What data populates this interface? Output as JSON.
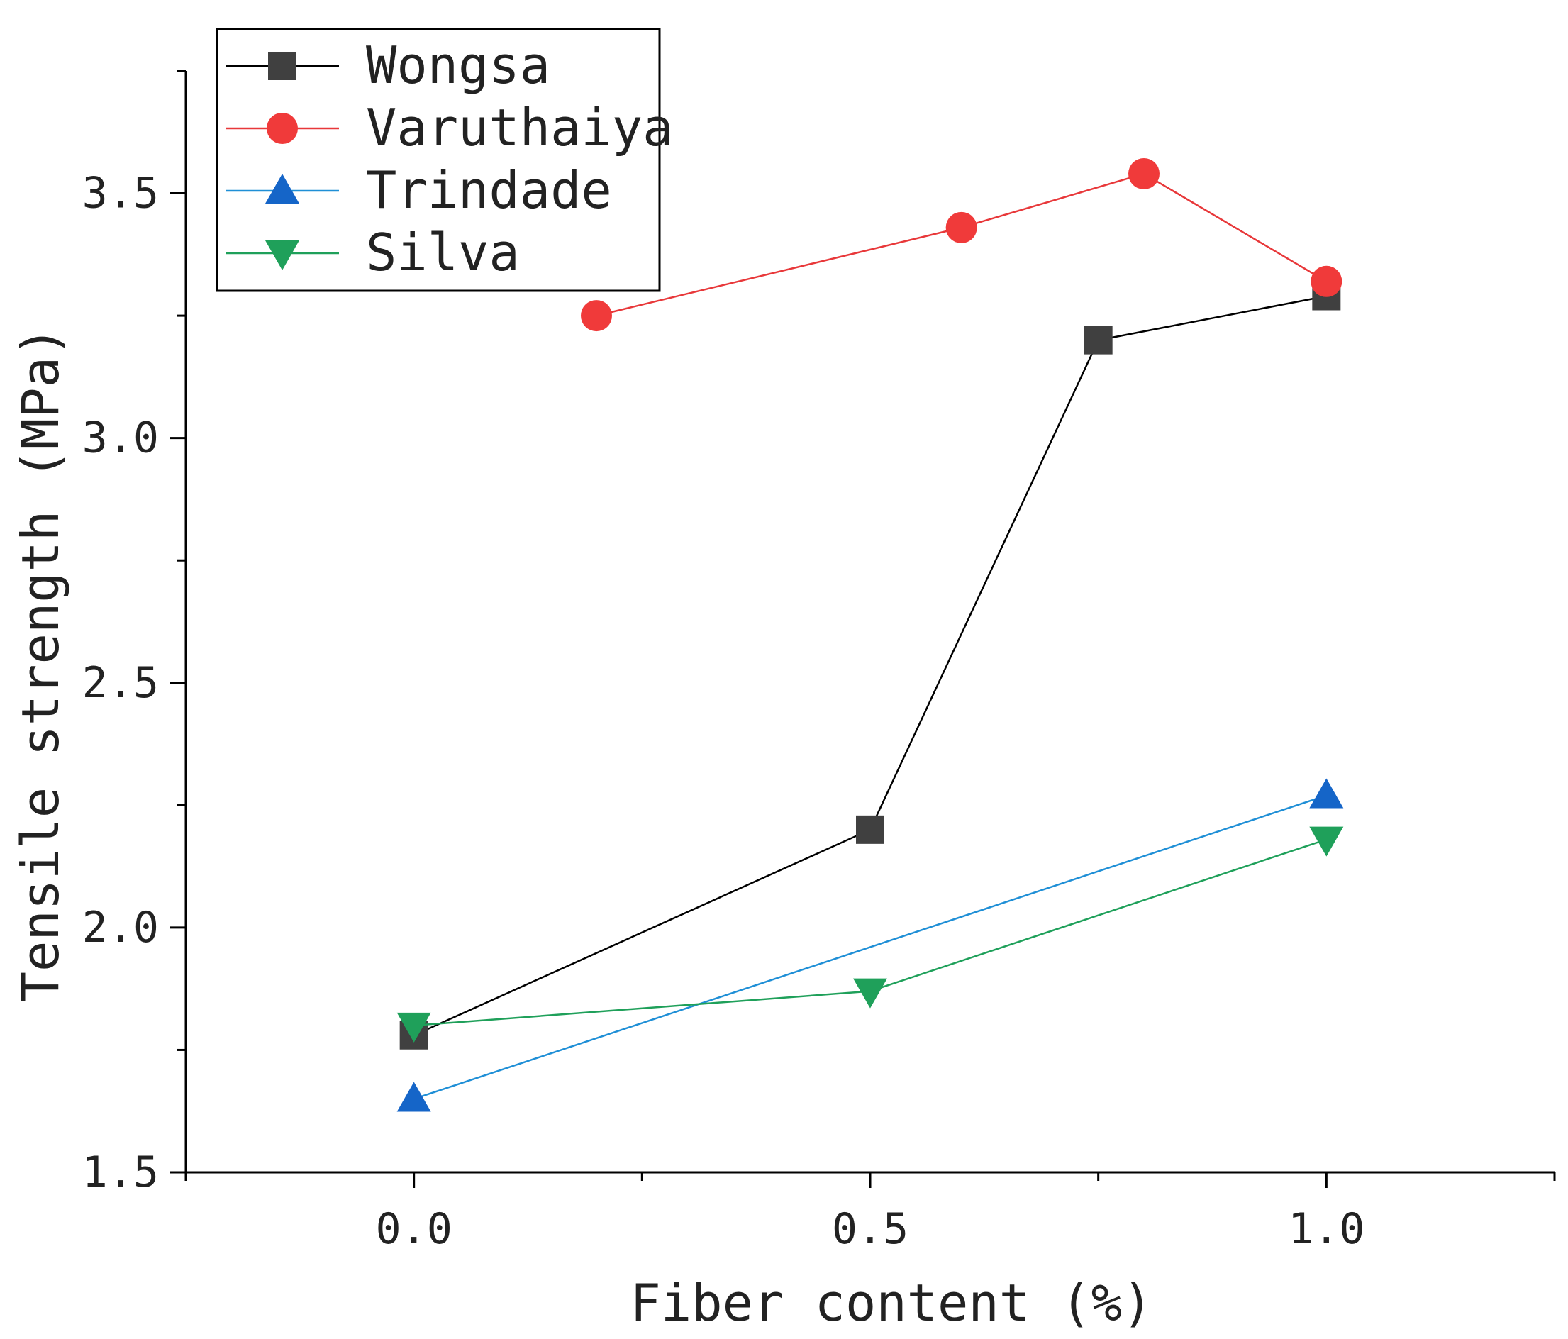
{
  "chart_data": {
    "type": "line",
    "title": "",
    "xlabel": "Fiber content (%)",
    "ylabel": "Tensile strength (MPa)",
    "xlim": [
      -0.25,
      1.25
    ],
    "ylim": [
      1.5,
      3.75
    ],
    "x_ticks": [
      0.0,
      0.5,
      1.0
    ],
    "x_tick_labels": [
      "0.0",
      "0.5",
      "1.0"
    ],
    "x_minor_ticks": [
      -0.25,
      0.25,
      0.75,
      1.25
    ],
    "y_ticks": [
      1.5,
      2.0,
      2.5,
      3.0,
      3.5
    ],
    "y_tick_labels": [
      "1.5",
      "2.0",
      "2.5",
      "3.0",
      "3.5"
    ],
    "y_minor_ticks": [
      1.75,
      2.25,
      2.75,
      3.25,
      3.75
    ],
    "grid": false,
    "legend_position": "top-left",
    "series": [
      {
        "name": "Wongsa",
        "color": "#000000",
        "marker_color": "#404040",
        "marker": "square",
        "x": [
          0.0,
          0.5,
          0.75,
          1.0
        ],
        "y": [
          1.78,
          2.2,
          3.2,
          3.29
        ]
      },
      {
        "name": "Varuthaiya",
        "color": "#e8383a",
        "marker_color": "#f03a3a",
        "marker": "circle",
        "x": [
          0.2,
          0.6,
          0.8,
          1.0
        ],
        "y": [
          3.25,
          3.43,
          3.54,
          3.32
        ]
      },
      {
        "name": "Trindade",
        "color": "#1f8fd6",
        "marker_color": "#1565c8",
        "marker": "triangle-up",
        "x": [
          0.0,
          1.0
        ],
        "y": [
          1.65,
          2.27
        ]
      },
      {
        "name": "Silva",
        "color": "#1fa05a",
        "marker_color": "#1fa05a",
        "marker": "triangle-down",
        "x": [
          0.0,
          0.5,
          1.0
        ],
        "y": [
          1.8,
          1.87,
          2.18
        ]
      }
    ]
  }
}
